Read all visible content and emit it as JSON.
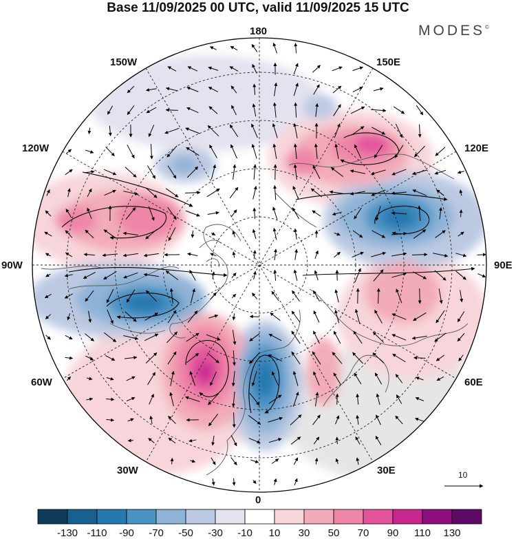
{
  "header": {
    "title": "Base 11/09/2025 00 UTC, valid 11/09/2025 15 UTC",
    "brand": "MODES",
    "brand_mark": "©"
  },
  "map": {
    "projection": "north polar stereographic",
    "longitude_labels": {
      "top": "180",
      "top_left": "150W",
      "top_right": "150E",
      "upper_left": "120W",
      "upper_right": "120E",
      "left": "90W",
      "right": "90E",
      "lower_left": "60W",
      "lower_right": "60E",
      "bottom_left": "30W",
      "bottom_right": "30E",
      "bottom": "0"
    },
    "features": [
      {
        "name": "positive anomaly, North Atlantic / Greenland",
        "sign": "positive",
        "peak": 110
      },
      {
        "name": "negative anomaly, Scandinavia / Northern Europe",
        "sign": "negative",
        "peak": -90
      },
      {
        "name": "negative anomaly, Hudson Bay / Labrador",
        "sign": "negative",
        "peak": -90
      },
      {
        "name": "positive anomaly, western Canada / Alaska",
        "sign": "positive",
        "peak": 70
      },
      {
        "name": "positive anomaly, East Siberian Sea",
        "sign": "positive",
        "peak": 90
      },
      {
        "name": "negative anomaly, Central Siberia",
        "sign": "negative",
        "peak": -90
      },
      {
        "name": "positive anomaly, Central Asia",
        "sign": "positive",
        "peak": 50
      },
      {
        "name": "positive anomaly, Western Russia",
        "sign": "positive",
        "peak": 70
      },
      {
        "name": "negative anomaly, Bering Strait",
        "sign": "negative",
        "peak": -50
      }
    ]
  },
  "reference_vector": {
    "value": "10"
  },
  "colorbar": {
    "ticks": [
      "-130",
      "-110",
      "-90",
      "-70",
      "-50",
      "-30",
      "-10",
      "10",
      "30",
      "50",
      "70",
      "90",
      "110",
      "130"
    ],
    "colors": [
      "#0e3d5c",
      "#18608f",
      "#2878b0",
      "#4b93c4",
      "#8fb3d6",
      "#bcc9e2",
      "#e3e3f0",
      "#ffffff",
      "#f7d5da",
      "#f2acb9",
      "#ee86a8",
      "#e3549c",
      "#c7288f",
      "#8f0f7f",
      "#5d0a66"
    ]
  }
}
